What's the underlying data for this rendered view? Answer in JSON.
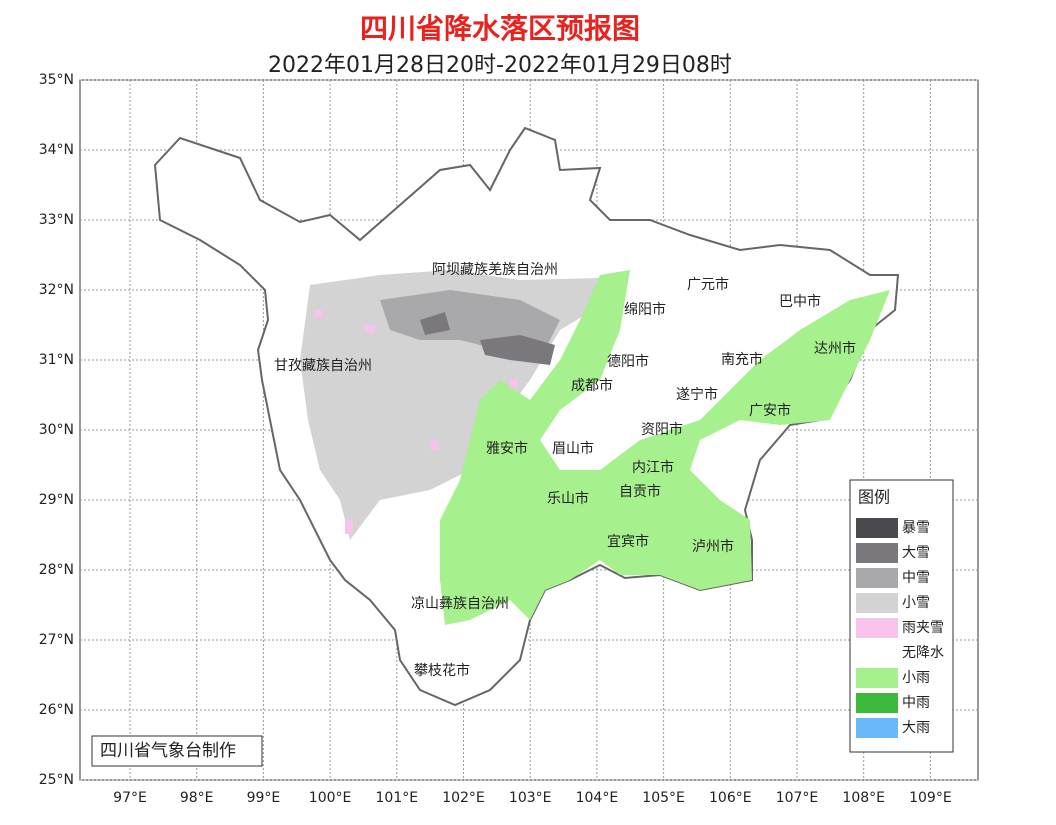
{
  "header": {
    "title": "四川省降水落区预报图",
    "subtitle": "2022年01月28日20时-2022年01月29日08时"
  },
  "axes": {
    "lat_labels": [
      "35°N",
      "34°N",
      "33°N",
      "32°N",
      "31°N",
      "30°N",
      "29°N",
      "28°N",
      "27°N",
      "26°N",
      "25°N"
    ],
    "lon_labels": [
      "97°E",
      "98°E",
      "99°E",
      "100°E",
      "101°E",
      "102°E",
      "103°E",
      "104°E",
      "105°E",
      "106°E",
      "107°E",
      "108°E",
      "109°E"
    ]
  },
  "regions": [
    "阿坝藏族羌族自治州",
    "甘孜藏族自治州",
    "绵阳市",
    "广元市",
    "巴中市",
    "德阳市",
    "南充市",
    "达州市",
    "成都市",
    "遂宁市",
    "广安市",
    "资阳市",
    "雅安市",
    "眉山市",
    "内江市",
    "自贡市",
    "乐山市",
    "宜宾市",
    "泸州市",
    "凉山彝族自治州",
    "攀枝花市"
  ],
  "legend": {
    "title": "图例",
    "items": [
      {
        "label": "暴雪",
        "color": "#4a4a4e"
      },
      {
        "label": "大雪",
        "color": "#7a787c"
      },
      {
        "label": "中雪",
        "color": "#a9a8aa"
      },
      {
        "label": "小雪",
        "color": "#d3d3d3"
      },
      {
        "label": "雨夹雪",
        "color": "#f7c3ec"
      },
      {
        "label": "无降水",
        "color": "#ffffff"
      },
      {
        "label": "小雨",
        "color": "#a6f08e"
      },
      {
        "label": "中雨",
        "color": "#3cba3c"
      },
      {
        "label": "大雨",
        "color": "#6ab8f8"
      }
    ]
  },
  "footer": "四川省气象台制作"
}
